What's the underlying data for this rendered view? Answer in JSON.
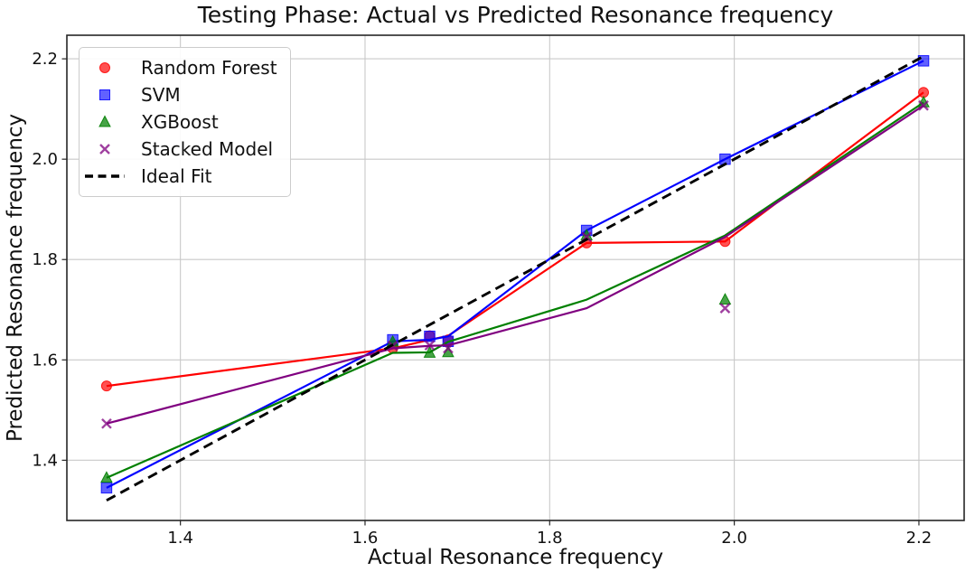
{
  "chart_data": {
    "type": "scatter",
    "title": "Testing Phase: Actual vs Predicted Resonance frequency",
    "xlabel": "Actual Resonance frequency",
    "ylabel": "Predicted Resonance frequency",
    "xlim": [
      1.277,
      2.249
    ],
    "ylim": [
      1.28,
      2.247
    ],
    "xticks": [
      1.4,
      1.6,
      1.8,
      2.0,
      2.2
    ],
    "yticks": [
      1.4,
      1.6,
      1.8,
      2.0,
      2.2
    ],
    "grid": true,
    "legend_position": "upper-left",
    "x_actual": [
      1.32,
      1.63,
      1.67,
      1.69,
      1.84,
      1.99,
      2.205
    ],
    "series": [
      {
        "name": "Random Forest",
        "marker": "circle",
        "color": "#ff0000",
        "scatter_y": [
          1.548,
          1.623,
          1.648,
          1.64,
          1.833,
          1.836,
          2.133
        ],
        "line_y": [
          1.548,
          1.623,
          1.64,
          1.648,
          1.833,
          1.836,
          2.133
        ]
      },
      {
        "name": "SVM",
        "marker": "square",
        "color": "#0000ff",
        "scatter_y": [
          1.345,
          1.64,
          1.647,
          1.637,
          1.858,
          2.0,
          2.196
        ],
        "line_y": [
          1.345,
          1.637,
          1.64,
          1.647,
          1.858,
          2.0,
          2.196
        ]
      },
      {
        "name": "XGBoost",
        "marker": "triangle",
        "color": "#008000",
        "scatter_y": [
          1.365,
          1.636,
          1.614,
          1.615,
          1.848,
          1.72,
          2.113
        ],
        "line_y": [
          1.365,
          1.614,
          1.615,
          1.636,
          1.72,
          1.848,
          2.113
        ]
      },
      {
        "name": "Stacked Model",
        "marker": "x",
        "color": "#800080",
        "scatter_y": [
          1.473,
          1.628,
          1.629,
          1.623,
          1.845,
          1.703,
          2.107
        ],
        "line_y": [
          1.473,
          1.623,
          1.628,
          1.629,
          1.703,
          1.845,
          2.107
        ]
      }
    ],
    "ideal_fit": {
      "name": "Ideal Fit",
      "color": "#000000",
      "style": "dashed",
      "x": [
        1.32,
        2.205
      ],
      "y": [
        1.32,
        2.205
      ]
    }
  }
}
